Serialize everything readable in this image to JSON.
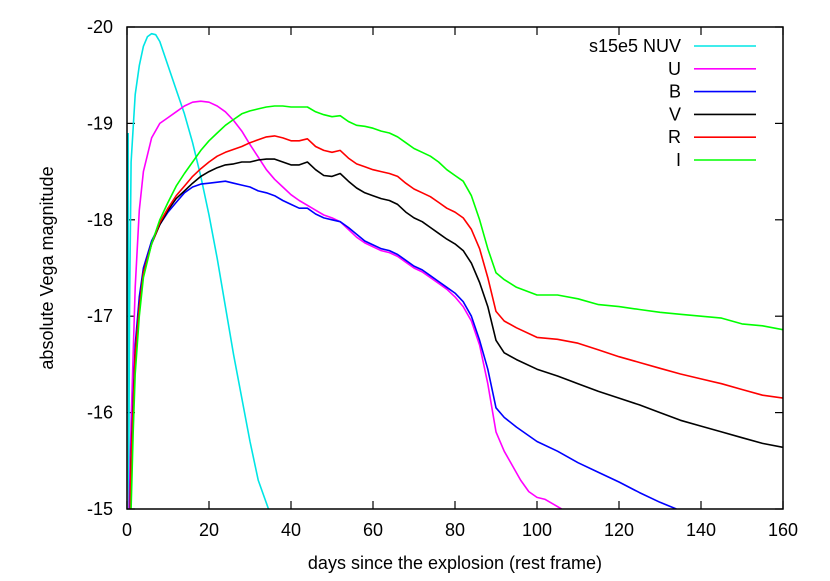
{
  "chart_data": {
    "type": "line",
    "title": "",
    "xlabel": "days since the explosion (rest frame)",
    "ylabel": "absolute Vega magnitude",
    "xlim": [
      0,
      160
    ],
    "ylim": [
      -15,
      -20
    ],
    "y_inverted": true,
    "x_ticks": [
      0,
      20,
      40,
      60,
      80,
      100,
      120,
      140,
      160
    ],
    "y_ticks": [
      -20,
      -19,
      -18,
      -17,
      -16,
      -15
    ],
    "grid": false,
    "legend_position": "top-right",
    "series": [
      {
        "name": "s15e5 NUV",
        "color": "#00e5e5",
        "x": [
          0.3,
          0.4,
          0.6,
          1,
          2,
          3,
          4,
          5,
          6,
          7,
          8,
          10,
          12,
          14,
          16,
          18,
          20,
          22,
          24,
          26,
          28,
          30,
          32,
          34.5
        ],
        "y": [
          -18.9,
          -15.0,
          -17.0,
          -18.6,
          -19.3,
          -19.6,
          -19.8,
          -19.9,
          -19.93,
          -19.92,
          -19.85,
          -19.6,
          -19.35,
          -19.1,
          -18.8,
          -18.45,
          -18.05,
          -17.6,
          -17.1,
          -16.6,
          -16.15,
          -15.7,
          -15.3,
          -15.0
        ]
      },
      {
        "name": "U",
        "color": "#ff00ff",
        "x": [
          0.5,
          1,
          2,
          3,
          4,
          6,
          8,
          10,
          12,
          14,
          16,
          18,
          20,
          22,
          24,
          26,
          28,
          30,
          32,
          34,
          36,
          38,
          40,
          42,
          44,
          46,
          48,
          50,
          52,
          54,
          56,
          58,
          60,
          62,
          64,
          66,
          68,
          70,
          72,
          74,
          76,
          78,
          80,
          82,
          84,
          86,
          88,
          90,
          92,
          94,
          96,
          98,
          100,
          102,
          104,
          106
        ],
        "y": [
          -15.0,
          -15.9,
          -17.3,
          -18.1,
          -18.5,
          -18.85,
          -19.0,
          -19.06,
          -19.12,
          -19.18,
          -19.22,
          -19.23,
          -19.22,
          -19.18,
          -19.12,
          -19.03,
          -18.92,
          -18.78,
          -18.65,
          -18.52,
          -18.42,
          -18.34,
          -18.26,
          -18.2,
          -18.15,
          -18.1,
          -18.05,
          -18.02,
          -17.98,
          -17.9,
          -17.82,
          -17.76,
          -17.72,
          -17.68,
          -17.66,
          -17.62,
          -17.56,
          -17.5,
          -17.46,
          -17.4,
          -17.34,
          -17.28,
          -17.2,
          -17.1,
          -16.95,
          -16.7,
          -16.3,
          -15.8,
          -15.6,
          -15.45,
          -15.3,
          -15.18,
          -15.12,
          -15.1,
          -15.05,
          -15.0
        ]
      },
      {
        "name": "B",
        "color": "#0000ff",
        "x": [
          0.7,
          1,
          2,
          3,
          4,
          6,
          8,
          10,
          12,
          14,
          16,
          18,
          20,
          22,
          24,
          26,
          28,
          30,
          32,
          34,
          36,
          38,
          40,
          42,
          44,
          46,
          48,
          50,
          52,
          54,
          56,
          58,
          60,
          62,
          64,
          66,
          68,
          70,
          72,
          74,
          76,
          78,
          80,
          82,
          84,
          86,
          88,
          90,
          92,
          95,
          100,
          105,
          110,
          115,
          120,
          125,
          130,
          134
        ],
        "y": [
          -15.0,
          -15.6,
          -16.7,
          -17.2,
          -17.5,
          -17.78,
          -17.95,
          -18.08,
          -18.18,
          -18.28,
          -18.34,
          -18.37,
          -18.38,
          -18.39,
          -18.4,
          -18.38,
          -18.36,
          -18.34,
          -18.3,
          -18.28,
          -18.25,
          -18.2,
          -18.16,
          -18.12,
          -18.12,
          -18.06,
          -18.02,
          -18.0,
          -17.98,
          -17.92,
          -17.85,
          -17.78,
          -17.74,
          -17.7,
          -17.68,
          -17.64,
          -17.58,
          -17.52,
          -17.48,
          -17.42,
          -17.36,
          -17.3,
          -17.24,
          -17.15,
          -17.0,
          -16.75,
          -16.45,
          -16.05,
          -15.95,
          -15.85,
          -15.7,
          -15.6,
          -15.48,
          -15.38,
          -15.28,
          -15.17,
          -15.07,
          -15.0
        ]
      },
      {
        "name": "V",
        "color": "#000000",
        "x": [
          0.8,
          1,
          2,
          3,
          4,
          6,
          8,
          10,
          12,
          14,
          16,
          18,
          20,
          22,
          24,
          26,
          28,
          30,
          32,
          34,
          36,
          38,
          40,
          42,
          44,
          46,
          48,
          50,
          52,
          54,
          56,
          58,
          60,
          62,
          64,
          66,
          68,
          70,
          72,
          74,
          76,
          78,
          80,
          82,
          84,
          86,
          88,
          90,
          92,
          95,
          100,
          105,
          110,
          115,
          120,
          125,
          130,
          135,
          140,
          145,
          150,
          155,
          160
        ],
        "y": [
          -15.0,
          -15.5,
          -16.6,
          -17.1,
          -17.45,
          -17.75,
          -17.95,
          -18.1,
          -18.22,
          -18.3,
          -18.38,
          -18.45,
          -18.5,
          -18.54,
          -18.57,
          -18.58,
          -18.6,
          -18.6,
          -18.62,
          -18.63,
          -18.63,
          -18.6,
          -18.57,
          -18.57,
          -18.6,
          -18.52,
          -18.46,
          -18.45,
          -18.48,
          -18.4,
          -18.33,
          -18.28,
          -18.25,
          -18.22,
          -18.2,
          -18.16,
          -18.08,
          -18.02,
          -17.98,
          -17.92,
          -17.86,
          -17.8,
          -17.75,
          -17.68,
          -17.55,
          -17.35,
          -17.1,
          -16.75,
          -16.62,
          -16.55,
          -16.45,
          -16.38,
          -16.3,
          -16.22,
          -16.15,
          -16.08,
          -16.0,
          -15.92,
          -15.86,
          -15.8,
          -15.74,
          -15.68,
          -15.64
        ]
      },
      {
        "name": "R",
        "color": "#ff0000",
        "x": [
          0.8,
          1,
          2,
          3,
          4,
          6,
          8,
          10,
          12,
          14,
          16,
          18,
          20,
          22,
          24,
          26,
          28,
          30,
          32,
          34,
          36,
          38,
          40,
          42,
          44,
          46,
          48,
          50,
          52,
          54,
          56,
          58,
          60,
          62,
          64,
          66,
          68,
          70,
          72,
          74,
          76,
          78,
          80,
          82,
          84,
          86,
          88,
          90,
          92,
          95,
          100,
          105,
          110,
          115,
          120,
          125,
          130,
          135,
          140,
          145,
          150,
          155,
          160
        ],
        "y": [
          -15.0,
          -15.5,
          -16.6,
          -17.1,
          -17.45,
          -17.75,
          -17.97,
          -18.12,
          -18.25,
          -18.35,
          -18.45,
          -18.53,
          -18.6,
          -18.66,
          -18.7,
          -18.73,
          -18.76,
          -18.8,
          -18.83,
          -18.86,
          -18.87,
          -18.85,
          -18.82,
          -18.82,
          -18.84,
          -18.76,
          -18.72,
          -18.7,
          -18.72,
          -18.64,
          -18.58,
          -18.55,
          -18.52,
          -18.5,
          -18.48,
          -18.45,
          -18.38,
          -18.32,
          -18.28,
          -18.24,
          -18.18,
          -18.12,
          -18.08,
          -18.02,
          -17.9,
          -17.7,
          -17.4,
          -17.05,
          -16.95,
          -16.88,
          -16.78,
          -16.76,
          -16.72,
          -16.65,
          -16.58,
          -16.52,
          -16.46,
          -16.4,
          -16.35,
          -16.3,
          -16.24,
          -16.18,
          -16.15
        ]
      },
      {
        "name": "I",
        "color": "#00ff00",
        "x": [
          1,
          1.5,
          2,
          3,
          4,
          6,
          8,
          10,
          12,
          14,
          16,
          18,
          20,
          22,
          24,
          26,
          28,
          30,
          32,
          34,
          36,
          38,
          40,
          42,
          44,
          46,
          48,
          50,
          52,
          54,
          56,
          58,
          60,
          62,
          64,
          66,
          68,
          70,
          72,
          74,
          76,
          78,
          80,
          82,
          84,
          86,
          88,
          90,
          92,
          95,
          100,
          105,
          110,
          115,
          120,
          125,
          130,
          135,
          140,
          145,
          150,
          155,
          160
        ],
        "y": [
          -15.0,
          -15.8,
          -16.4,
          -17.0,
          -17.4,
          -17.75,
          -18.0,
          -18.18,
          -18.35,
          -18.48,
          -18.6,
          -18.72,
          -18.82,
          -18.9,
          -18.98,
          -19.04,
          -19.1,
          -19.13,
          -19.15,
          -19.17,
          -19.18,
          -19.18,
          -19.17,
          -19.17,
          -19.17,
          -19.12,
          -19.09,
          -19.07,
          -19.08,
          -19.02,
          -18.98,
          -18.97,
          -18.95,
          -18.92,
          -18.9,
          -18.86,
          -18.8,
          -18.74,
          -18.7,
          -18.66,
          -18.6,
          -18.52,
          -18.46,
          -18.4,
          -18.25,
          -18.0,
          -17.7,
          -17.45,
          -17.38,
          -17.3,
          -17.22,
          -17.22,
          -17.18,
          -17.12,
          -17.1,
          -17.07,
          -17.04,
          -17.02,
          -17.0,
          -16.98,
          -16.92,
          -16.9,
          -16.86
        ]
      }
    ]
  }
}
